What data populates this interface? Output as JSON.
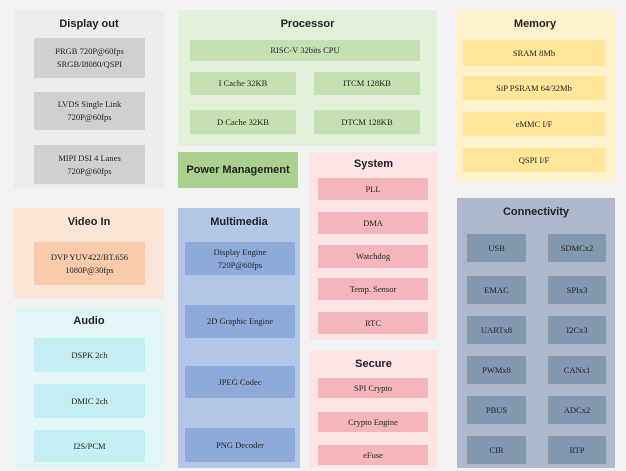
{
  "panels": [
    {
      "title": "Display out",
      "items": [
        "PRGB 720P@60fps\nSRGB/I8080/QSPI",
        "LVDS Single Link\n720P@60fps",
        "MIPI DSI 4 Lanes\n720P@60fps"
      ]
    },
    {
      "title": "Processor",
      "items": [
        "RISC-V 32bits CPU",
        "I Cache 32KB",
        "ITCM 128KB",
        "D Cache 32KB",
        "DTCM 128KB"
      ]
    },
    {
      "title": "Memory",
      "items": [
        "SRAM 8Mb",
        "SiP PSRAM 64/32Mb",
        "eMMC I/F",
        "QSPI I/F"
      ]
    },
    {
      "title": "Power Management",
      "items": []
    },
    {
      "title": "System",
      "items": [
        "PLL",
        "DMA",
        "Watchdog",
        "Temp. Sensor",
        "RTC"
      ]
    },
    {
      "title": "Secure",
      "items": [
        "SPI Crypto",
        "Crypto Engine",
        "eFuse"
      ]
    },
    {
      "title": "Video In",
      "items": [
        "DVP YUV422/BT.656\n1080P@30fps"
      ]
    },
    {
      "title": "Audio",
      "items": [
        "DSPK 2ch",
        "DMIC 2ch",
        "I2S/PCM"
      ]
    },
    {
      "title": "Multimedia",
      "items": [
        "Display Engine\n720P@60fps",
        "2D Graphic Engine",
        "JPEG Codec",
        "PNG Decoder"
      ]
    },
    {
      "title": "Connectivity",
      "items": [
        "USB",
        "SDMCx2",
        "EMAC",
        "SPIx3",
        "UARTx8",
        "I2Cx3",
        "PWMx8",
        "CANx1",
        "PBUS",
        "ADCx2",
        "CIR",
        "RTP"
      ]
    }
  ]
}
